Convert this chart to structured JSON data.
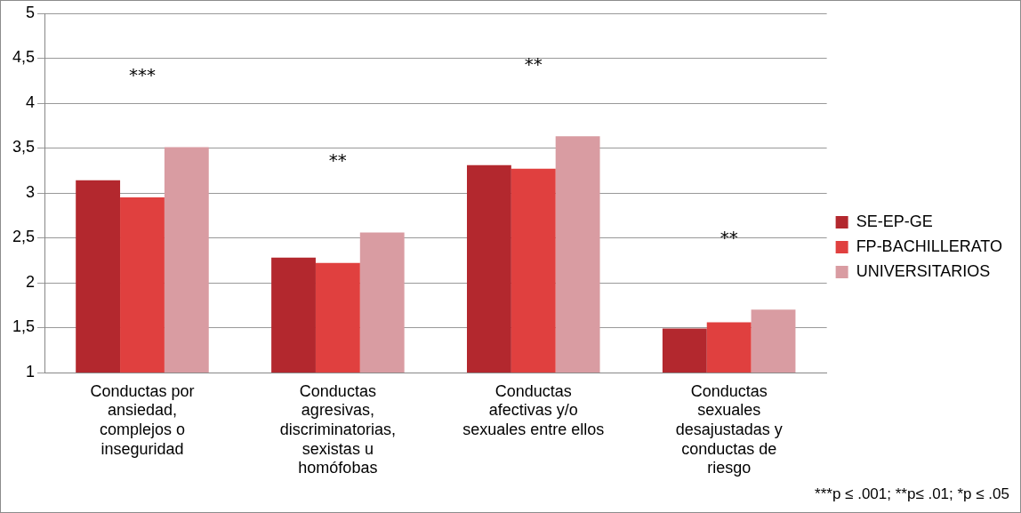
{
  "chart_data": {
    "type": "bar",
    "categories": [
      "Conductas por ansiedad, complejos o inseguridad",
      "Conductas agresivas, discriminatorias, sexistas u homófobas",
      "Conductas afectivas y/o sexuales entre ellos",
      "Conductas sexuales desajustadas y conductas de riesgo"
    ],
    "series": [
      {
        "name": "SE-EP-GE",
        "color": "#b3282e",
        "values": [
          3.14,
          2.28,
          3.31,
          1.49
        ]
      },
      {
        "name": "FP-BACHILLERATO",
        "color": "#e0403f",
        "values": [
          2.95,
          2.22,
          3.27,
          1.56
        ]
      },
      {
        "name": "UNIVERSITARIOS",
        "color": "#d99ca2",
        "values": [
          3.51,
          2.56,
          3.63,
          1.7
        ]
      }
    ],
    "ylim": [
      1,
      5
    ],
    "yticks": [
      1,
      {
        "value": 1.5,
        "label": "1,5"
      },
      2,
      {
        "value": 2.5,
        "label": "2,5"
      },
      3,
      {
        "value": 3.5,
        "label": "3,5"
      },
      4,
      {
        "value": 4.5,
        "label": "4,5"
      },
      5
    ],
    "grid": "y",
    "legend": "right",
    "annotations": [
      "***",
      "**",
      "**",
      "**",
      "***p ≤ .001; **p≤ .01; *p ≤ .05"
    ]
  }
}
